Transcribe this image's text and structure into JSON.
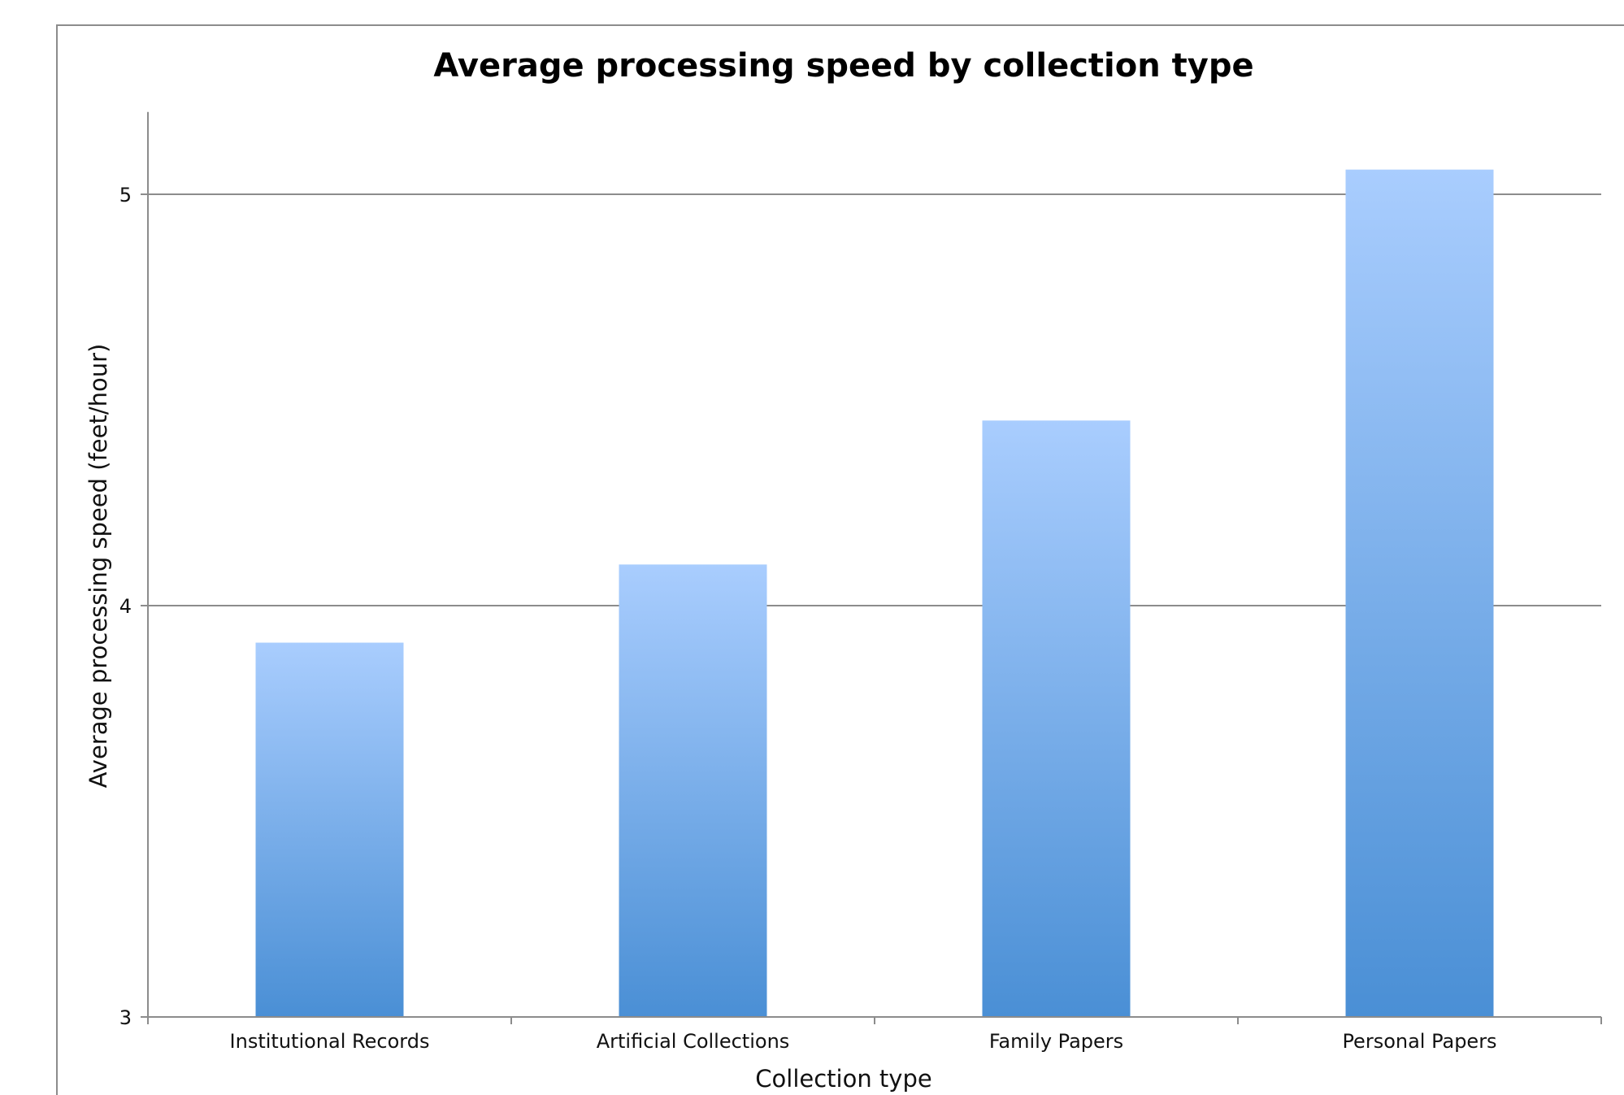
{
  "chart_data": {
    "type": "bar",
    "title": "Average processing speed by collection type",
    "xlabel": "Collection type",
    "ylabel": "Average processing speed (feet/hour)",
    "categories": [
      "Institutional Records",
      "Artificial Collections",
      "Family Papers",
      "Personal Papers"
    ],
    "values": [
      3.91,
      4.1,
      4.45,
      5.06
    ],
    "ylim": [
      3,
      5.2
    ],
    "yticks": [
      "3",
      "4",
      "5"
    ],
    "grid": true,
    "legend": "none",
    "colors": {
      "bar_top": "#a9cdfe",
      "bar_bottom": "#4a8fd5",
      "grid": "#8c8c8c",
      "axis": "#8c8c8c",
      "frame": "#8c8c8c"
    }
  }
}
